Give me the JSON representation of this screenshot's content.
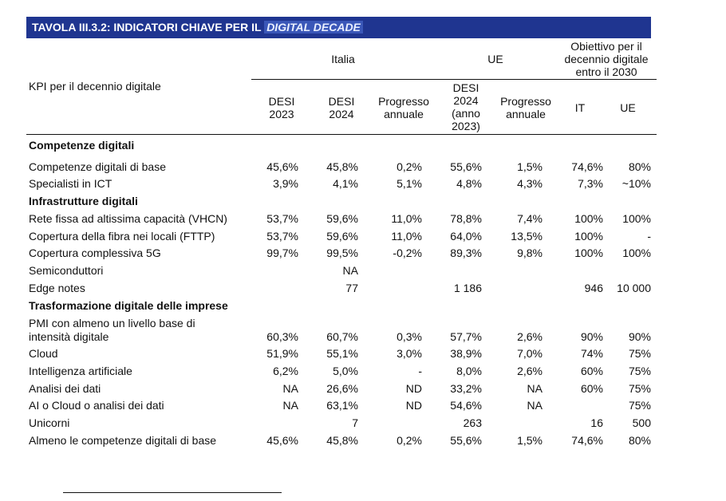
{
  "title": {
    "prefix": "TAVOLA III.3.2: INDICATORI CHIAVE PER IL ",
    "highlight": "DIGITAL DECADE"
  },
  "header": {
    "kpi": "KPI per il decennio digitale",
    "group_italia": "Italia",
    "group_ue": "UE",
    "group_obiettivo": [
      "Obiettivo per il",
      "decennio digitale",
      "entro il 2030"
    ],
    "col_desi2023": [
      "DESI",
      "2023"
    ],
    "col_desi2024": [
      "DESI",
      "2024"
    ],
    "col_progresso_it": [
      "Progresso",
      "annuale"
    ],
    "col_ue_desi2024": [
      "DESI",
      "2024",
      "(anno",
      "2023)"
    ],
    "col_progresso_ue": [
      "Progresso",
      "annuale"
    ],
    "col_it": "IT",
    "col_ue": "UE"
  },
  "rows": [
    {
      "type": "section",
      "label": "Competenze digitali"
    },
    {
      "type": "data",
      "label": "Competenze digitali di base",
      "desi2023": "45,6%",
      "desi2024": "45,8%",
      "prog_it": "0,2%",
      "ue_desi": "55,6%",
      "prog_ue": "1,5%",
      "target_it": "74,6%",
      "target_ue": "80%"
    },
    {
      "type": "data",
      "label": "Specialisti in ICT",
      "desi2023": "3,9%",
      "desi2024": "4,1%",
      "prog_it": "5,1%",
      "ue_desi": "4,8%",
      "prog_ue": "4,3%",
      "target_it": "7,3%",
      "target_ue": "~10%"
    },
    {
      "type": "section",
      "label": "Infrastrutture digitali"
    },
    {
      "type": "data",
      "label": "Rete fissa ad altissima capacità (VHCN)",
      "desi2023": "53,7%",
      "desi2024": "59,6%",
      "prog_it": "11,0%",
      "ue_desi": "78,8%",
      "prog_ue": "7,4%",
      "target_it": "100%",
      "target_ue": "100%"
    },
    {
      "type": "data",
      "label": "Copertura della fibra nei locali (FTTP)",
      "desi2023": "53,7%",
      "desi2024": "59,6%",
      "prog_it": "11,0%",
      "ue_desi": "64,0%",
      "prog_ue": "13,5%",
      "target_it": "100%",
      "target_ue": "-"
    },
    {
      "type": "data",
      "label": "Copertura complessiva 5G",
      "desi2023": "99,7%",
      "desi2024": "99,5%",
      "prog_it": "-0,2%",
      "ue_desi": "89,3%",
      "prog_ue": "9,8%",
      "target_it": "100%",
      "target_ue": "100%"
    },
    {
      "type": "data",
      "label": "Semiconduttori",
      "desi2023": "",
      "desi2024": "NA",
      "prog_it": "",
      "ue_desi": "",
      "prog_ue": "",
      "target_it": "",
      "target_ue": ""
    },
    {
      "type": "data",
      "label": "Edge notes",
      "desi2023": "",
      "desi2024": "77",
      "prog_it": "",
      "ue_desi": "1 186",
      "prog_ue": "",
      "target_it": "946",
      "target_ue": "10 000"
    },
    {
      "type": "section",
      "label": "Trasformazione digitale delle imprese"
    },
    {
      "type": "data",
      "label": "PMI con almeno un livello base di",
      "label2": "intensità digitale",
      "desi2023": "60,3%",
      "desi2024": "60,7%",
      "prog_it": "0,3%",
      "ue_desi": "57,7%",
      "prog_ue": "2,6%",
      "target_it": "90%",
      "target_ue": "90%"
    },
    {
      "type": "data",
      "label": "Cloud",
      "desi2023": "51,9%",
      "desi2024": "55,1%",
      "prog_it": "3,0%",
      "ue_desi": "38,9%",
      "prog_ue": "7,0%",
      "target_it": "74%",
      "target_ue": "75%"
    },
    {
      "type": "data",
      "label": "Intelligenza artificiale",
      "desi2023": "6,2%",
      "desi2024": "5,0%",
      "prog_it": "-",
      "ue_desi": "8,0%",
      "prog_ue": "2,6%",
      "target_it": "60%",
      "target_ue": "75%"
    },
    {
      "type": "data",
      "label": "Analisi dei dati",
      "desi2023": "NA",
      "desi2024": "26,6%",
      "prog_it": "ND",
      "ue_desi": "33,2%",
      "prog_ue": "NA",
      "target_it": "60%",
      "target_ue": "75%"
    },
    {
      "type": "data",
      "label": "AI o Cloud o analisi dei dati",
      "desi2023": "NA",
      "desi2024": "63,1%",
      "prog_it": "ND",
      "ue_desi": "54,6%",
      "prog_ue": "NA",
      "target_it": "",
      "target_ue": "75%"
    },
    {
      "type": "data",
      "label": "Unicorni",
      "desi2023": "",
      "desi2024": "7",
      "prog_it": "",
      "ue_desi": "263",
      "prog_ue": "",
      "target_it": "16",
      "target_ue": "500"
    },
    {
      "type": "data",
      "label": "Almeno le competenze digitali di base",
      "desi2023": "45,6%",
      "desi2024": "45,8%",
      "prog_it": "0,2%",
      "ue_desi": "55,6%",
      "prog_ue": "1,5%",
      "target_it": "74,6%",
      "target_ue": "80%"
    }
  ]
}
